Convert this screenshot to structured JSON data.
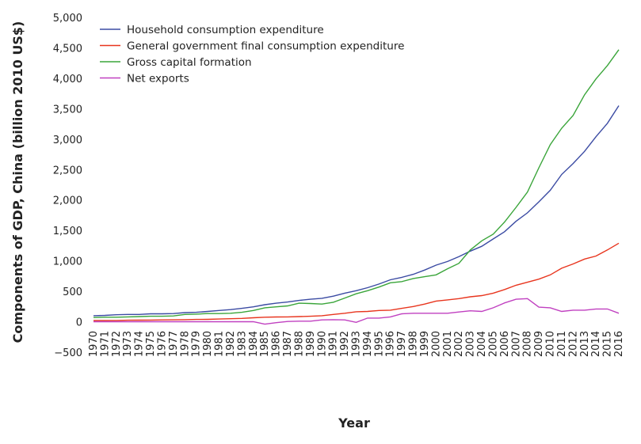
{
  "chart_data": {
    "type": "line",
    "y_label": "Components of GDP, China (billion 2010 US$)",
    "x_label": "Year",
    "x": [
      1970,
      1971,
      1972,
      1973,
      1974,
      1975,
      1976,
      1977,
      1978,
      1979,
      1980,
      1981,
      1982,
      1983,
      1984,
      1985,
      1986,
      1987,
      1988,
      1989,
      1990,
      1991,
      1992,
      1993,
      1994,
      1995,
      1996,
      1997,
      1998,
      1999,
      2000,
      2001,
      2002,
      2003,
      2004,
      2005,
      2006,
      2007,
      2008,
      2009,
      2010,
      2011,
      2012,
      2013,
      2014,
      2015,
      2016
    ],
    "xlim": [
      1970,
      2016
    ],
    "ylim": [
      -500,
      5000
    ],
    "yticks": [
      {
        "value": -500,
        "label": "−500"
      },
      0,
      500,
      {
        "value": 1000,
        "label": "1,000"
      },
      {
        "value": 1500,
        "label": "1,500"
      },
      {
        "value": 2000,
        "label": "2,000"
      },
      {
        "value": 2500,
        "label": "2,500"
      },
      {
        "value": 3000,
        "label": "3,000"
      },
      {
        "value": 3500,
        "label": "3,500"
      },
      {
        "value": 4000,
        "label": "4,000"
      },
      {
        "value": 4500,
        "label": "4,500"
      },
      {
        "value": 5000,
        "label": "5,000"
      }
    ],
    "legend": "upper left",
    "series": [
      {
        "name": "Household consumption expenditure",
        "color": "#3b4ba3",
        "values": [
          100,
          105,
          115,
          120,
          120,
          130,
          130,
          135,
          150,
          155,
          170,
          185,
          200,
          220,
          245,
          280,
          305,
          325,
          350,
          370,
          385,
          420,
          470,
          510,
          560,
          620,
          690,
          730,
          780,
          850,
          930,
          990,
          1070,
          1160,
          1240,
          1360,
          1480,
          1650,
          1790,
          1970,
          2160,
          2420,
          2600,
          2800,
          3040,
          3260,
          3550
        ]
      },
      {
        "name": "General government final consumption expenditure",
        "color": "#e8351e",
        "values": [
          20,
          20,
          22,
          25,
          27,
          28,
          30,
          32,
          35,
          38,
          40,
          45,
          50,
          55,
          65,
          75,
          78,
          80,
          85,
          90,
          100,
          120,
          140,
          165,
          170,
          185,
          190,
          220,
          250,
          290,
          340,
          360,
          380,
          410,
          430,
          470,
          530,
          600,
          650,
          700,
          770,
          880,
          950,
          1030,
          1080,
          1180,
          1290
        ]
      },
      {
        "name": "Gross capital formation",
        "color": "#3aa53a",
        "values": [
          70,
          75,
          75,
          80,
          85,
          90,
          90,
          95,
          120,
          125,
          135,
          135,
          140,
          155,
          185,
          230,
          245,
          260,
          305,
          300,
          290,
          320,
          390,
          460,
          510,
          570,
          640,
          660,
          710,
          740,
          770,
          870,
          960,
          1180,
          1330,
          1440,
          1640,
          1880,
          2130,
          2530,
          2910,
          3180,
          3390,
          3730,
          3990,
          4210,
          4470
        ]
      },
      {
        "name": "Net exports",
        "color": "#c040c0",
        "values": [
          0,
          0,
          0,
          0,
          0,
          0,
          0,
          0,
          0,
          0,
          0,
          0,
          0,
          0,
          0,
          -40,
          -15,
          5,
          10,
          10,
          30,
          35,
          30,
          -10,
          60,
          60,
          80,
          130,
          140,
          140,
          140,
          140,
          160,
          180,
          170,
          230,
          310,
          370,
          380,
          240,
          230,
          170,
          190,
          190,
          210,
          210,
          140
        ]
      }
    ]
  }
}
